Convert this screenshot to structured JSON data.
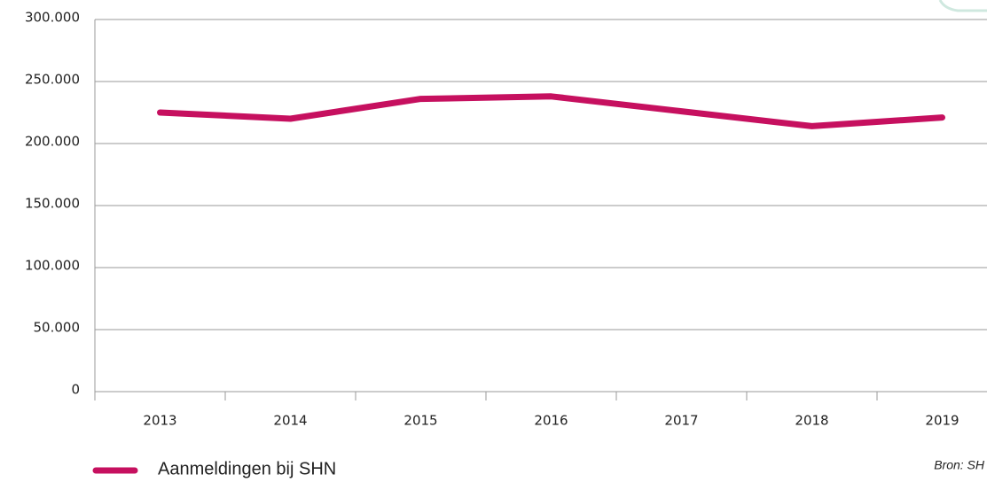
{
  "chart_data": {
    "type": "line",
    "categories": [
      "2013",
      "2014",
      "2015",
      "2016",
      "2017",
      "2018",
      "2019"
    ],
    "series": [
      {
        "name": "Aanmeldingen bij SHN",
        "color": "#c6105f",
        "values": [
          225000,
          220000,
          236000,
          238000,
          226000,
          214000,
          221000
        ]
      }
    ],
    "ylim": [
      0,
      300000
    ],
    "yticks": [
      0,
      {
        "value": 50000,
        "label": "50.000"
      },
      {
        "value": 100000,
        "label": "100.000"
      },
      {
        "value": 150000,
        "label": "150.000"
      },
      {
        "value": 200000,
        "label": "200.000"
      },
      {
        "value": 250000,
        "label": "250.000"
      },
      {
        "value": 300000,
        "label": "300.000"
      }
    ],
    "grid": true,
    "source": "Bron: SH"
  }
}
